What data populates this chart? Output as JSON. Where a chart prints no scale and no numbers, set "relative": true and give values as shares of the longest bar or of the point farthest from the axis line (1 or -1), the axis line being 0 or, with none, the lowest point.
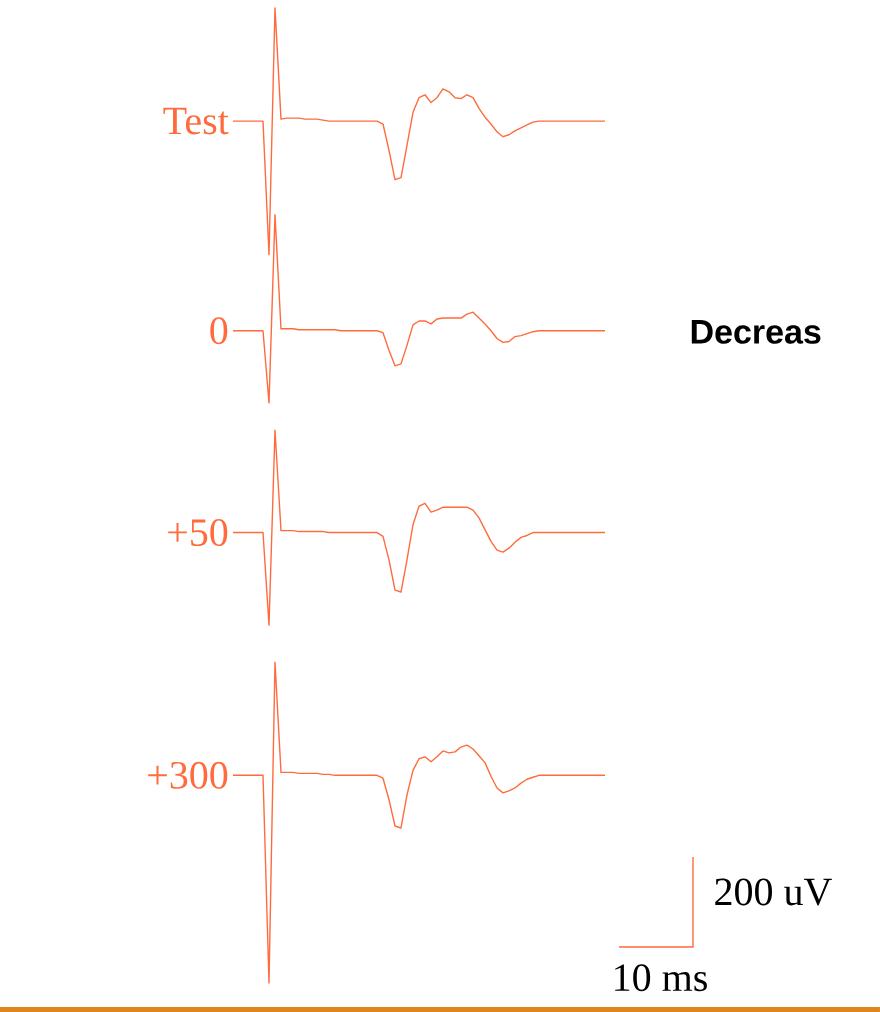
{
  "chart_data": {
    "type": "line",
    "relative": true,
    "categories": [
      null,
      null,
      null,
      null,
      null,
      null,
      null,
      null,
      null,
      null,
      null,
      null,
      null,
      null,
      null,
      null,
      null,
      null,
      null,
      null,
      null,
      null,
      null,
      null,
      null,
      null,
      null,
      null,
      null,
      null,
      null,
      null,
      null,
      null,
      null,
      null,
      null,
      null,
      null,
      null,
      null,
      null,
      null,
      null,
      null,
      null,
      null,
      null,
      null,
      null,
      null,
      null,
      null,
      null,
      null,
      null,
      null,
      null,
      null,
      null,
      null,
      null,
      null
    ],
    "series": [
      {
        "name": "Test",
        "color": "#ff6b3d",
        "values": [
          0.884,
          0.884,
          0.884,
          0.884,
          0.884,
          0.884,
          0.747,
          1.0,
          0.886,
          0.887,
          0.887,
          0.887,
          0.886,
          0.886,
          0.886,
          0.885,
          0.884,
          0.884,
          0.884,
          0.884,
          0.884,
          0.884,
          0.884,
          0.884,
          0.884,
          0.881,
          0.854,
          0.824,
          0.826,
          0.859,
          0.893,
          0.908,
          0.911,
          0.903,
          0.908,
          0.917,
          0.914,
          0.908,
          0.907,
          0.911,
          0.908,
          0.897,
          0.888,
          0.881,
          0.873,
          0.868,
          0.87,
          0.874,
          0.877,
          0.88,
          0.883,
          0.884,
          0.884,
          0.884,
          0.884,
          0.884,
          0.884,
          0.884,
          0.884,
          0.884,
          0.884,
          0.884,
          0.884
        ]
      },
      {
        "name": "0",
        "color": "#ff6b3d",
        "values": [
          0.669,
          0.669,
          0.669,
          0.669,
          0.669,
          0.669,
          0.595,
          0.788,
          0.671,
          0.671,
          0.671,
          0.67,
          0.67,
          0.67,
          0.67,
          0.67,
          0.67,
          0.67,
          0.669,
          0.669,
          0.669,
          0.669,
          0.669,
          0.669,
          0.669,
          0.667,
          0.649,
          0.633,
          0.635,
          0.654,
          0.675,
          0.679,
          0.679,
          0.676,
          0.681,
          0.682,
          0.682,
          0.682,
          0.682,
          0.686,
          0.688,
          0.682,
          0.676,
          0.669,
          0.661,
          0.657,
          0.658,
          0.663,
          0.664,
          0.666,
          0.668,
          0.669,
          0.669,
          0.669,
          0.669,
          0.669,
          0.669,
          0.669,
          0.669,
          0.669,
          0.669,
          0.669,
          0.669
        ]
      },
      {
        "name": "+50",
        "color": "#ff6b3d",
        "values": [
          0.462,
          0.462,
          0.462,
          0.462,
          0.462,
          0.462,
          0.367,
          0.567,
          0.464,
          0.464,
          0.464,
          0.463,
          0.463,
          0.463,
          0.463,
          0.463,
          0.462,
          0.462,
          0.462,
          0.462,
          0.462,
          0.462,
          0.462,
          0.462,
          0.462,
          0.458,
          0.434,
          0.403,
          0.401,
          0.434,
          0.47,
          0.489,
          0.492,
          0.483,
          0.485,
          0.488,
          0.488,
          0.488,
          0.488,
          0.488,
          0.485,
          0.477,
          0.465,
          0.453,
          0.444,
          0.442,
          0.446,
          0.452,
          0.457,
          0.459,
          0.462,
          0.462,
          0.462,
          0.462,
          0.462,
          0.462,
          0.462,
          0.462,
          0.462,
          0.462,
          0.462,
          0.462,
          0.462
        ]
      },
      {
        "name": "+300",
        "color": "#ff6b3d",
        "values": [
          0.213,
          0.213,
          0.213,
          0.213,
          0.213,
          0.213,
          0.0,
          0.329,
          0.216,
          0.216,
          0.216,
          0.215,
          0.215,
          0.215,
          0.215,
          0.214,
          0.214,
          0.213,
          0.213,
          0.213,
          0.213,
          0.213,
          0.213,
          0.213,
          0.213,
          0.21,
          0.188,
          0.161,
          0.159,
          0.193,
          0.218,
          0.23,
          0.232,
          0.227,
          0.232,
          0.238,
          0.236,
          0.237,
          0.242,
          0.244,
          0.24,
          0.233,
          0.226,
          0.212,
          0.2,
          0.195,
          0.197,
          0.2,
          0.205,
          0.209,
          0.211,
          0.213,
          0.213,
          0.213,
          0.213,
          0.213,
          0.213,
          0.213,
          0.213,
          0.213,
          0.213,
          0.213,
          0.213
        ]
      }
    ],
    "annotations": [
      "Decreas",
      "200 uV",
      "10 ms"
    ]
  }
}
